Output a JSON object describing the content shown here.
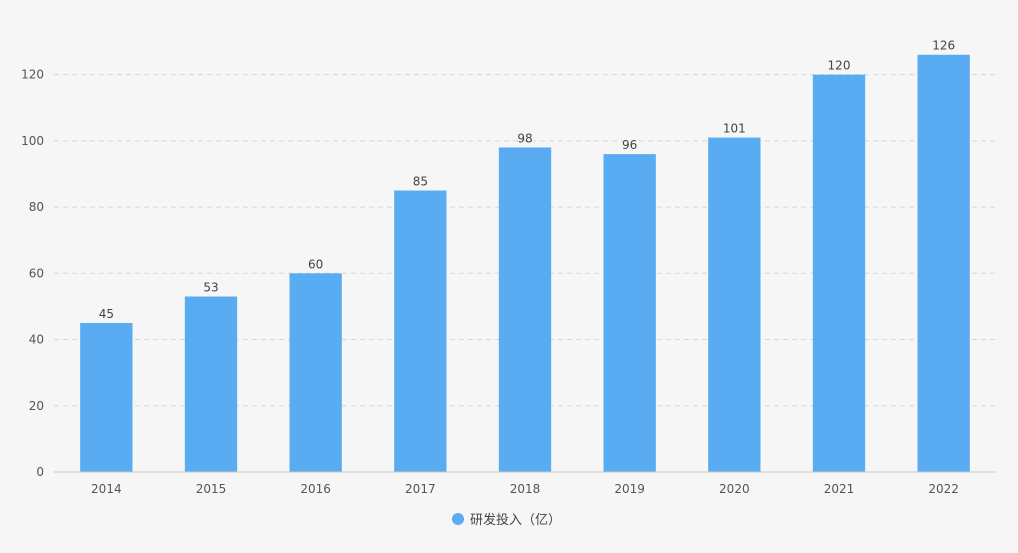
{
  "chart_data": {
    "type": "bar",
    "categories": [
      "2014",
      "2015",
      "2016",
      "2017",
      "2018",
      "2019",
      "2020",
      "2021",
      "2022"
    ],
    "series": [
      {
        "name": "研发投入（亿）",
        "values": [
          45,
          53,
          60,
          85,
          98,
          96,
          101,
          120,
          126
        ],
        "color": "#5aacf2"
      }
    ],
    "title": "",
    "xlabel": "",
    "ylabel": "",
    "ylim": [
      0,
      130
    ],
    "yticks": [
      0,
      20,
      40,
      60,
      80,
      100,
      120
    ],
    "grid": true,
    "grid_style": "dashed",
    "data_labels": true,
    "legend_position": "bottom-center"
  }
}
